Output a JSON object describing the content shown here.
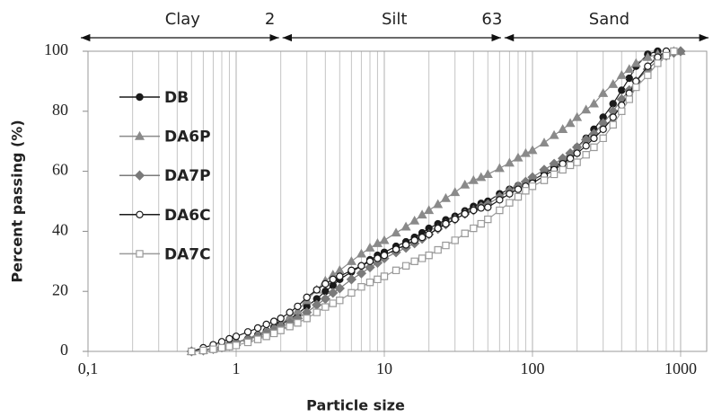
{
  "chart_data": {
    "type": "line",
    "xlabel": "Particle size",
    "ylabel": "Percent passing (%)",
    "log_x": true,
    "xlim": [
      0.1,
      1500
    ],
    "ylim": [
      0,
      100
    ],
    "xticks": [
      {
        "value": 0.1,
        "label": "0,1"
      },
      1,
      10,
      100,
      1000
    ],
    "yticks": [
      0,
      20,
      40,
      60,
      80,
      100
    ],
    "x_minor_grid": [
      0.2,
      0.3,
      0.4,
      0.5,
      0.6,
      0.7,
      0.8,
      0.9,
      2,
      3,
      4,
      5,
      6,
      7,
      8,
      9,
      20,
      30,
      40,
      50,
      60,
      70,
      80,
      90,
      200,
      300,
      400,
      500,
      600,
      700,
      800,
      900
    ],
    "zones": [
      "Clay",
      "Silt",
      "Sand"
    ],
    "boundaries": [
      2,
      63
    ],
    "legend": "upper left",
    "x": [
      0.5,
      0.6,
      0.7,
      0.8,
      0.9,
      1,
      1.2,
      1.4,
      1.6,
      1.8,
      2,
      2.3,
      2.6,
      3,
      3.5,
      4,
      4.5,
      5,
      6,
      7,
      8,
      9,
      10,
      12,
      14,
      16,
      18,
      20,
      23,
      26,
      30,
      35,
      40,
      45,
      50,
      60,
      70,
      80,
      90,
      100,
      120,
      140,
      160,
      180,
      200,
      230,
      260,
      300,
      350,
      400,
      450,
      500,
      600,
      700,
      800,
      900,
      1000
    ],
    "series": [
      {
        "name": "DB",
        "color": "#1a1a1a",
        "marker": "circle",
        "open": false,
        "values": [
          0,
          0.5,
          1,
          1.5,
          2.2,
          3,
          4.2,
          5.5,
          6.8,
          8,
          9,
          10.8,
          12.5,
          15,
          17.5,
          20,
          22,
          24,
          26.5,
          28.5,
          30.5,
          32,
          33,
          35,
          36.5,
          38,
          39.5,
          41,
          42.5,
          43.8,
          45,
          46.8,
          48.3,
          49.3,
          50,
          52.5,
          54,
          55.2,
          56.2,
          57,
          59.2,
          61.2,
          63,
          64.6,
          68,
          71,
          74,
          78,
          82.5,
          87,
          91,
          95,
          99,
          100,
          null,
          null,
          null
        ]
      },
      {
        "name": "DA6P",
        "color": "#8a8a8a",
        "marker": "triangle",
        "open": false,
        "values": [
          0,
          0.4,
          0.9,
          1.5,
          2.2,
          3,
          4.3,
          5.7,
          7,
          8,
          9,
          11.5,
          13.5,
          17,
          20.5,
          23.5,
          25.5,
          27,
          30,
          32.5,
          34.5,
          36,
          37,
          39.5,
          41.5,
          43.5,
          45.5,
          47,
          49,
          51,
          53,
          55.5,
          57,
          58,
          59,
          61,
          62.8,
          64.5,
          66,
          67,
          69.5,
          72,
          74,
          76,
          78,
          80.5,
          82.5,
          86,
          89,
          92,
          94,
          96,
          98,
          99,
          99.5,
          100,
          100
        ]
      },
      {
        "name": "DA7P",
        "color": "#7a7a7a",
        "marker": "diamond",
        "open": false,
        "values": [
          0,
          0.3,
          0.8,
          1.3,
          2,
          3,
          4,
          5,
          6,
          7,
          8,
          9.5,
          11,
          13,
          15.5,
          17.5,
          19.5,
          21,
          24,
          26,
          28,
          29.5,
          31,
          33,
          34.5,
          36,
          37.5,
          39,
          40.8,
          42.3,
          44,
          45.8,
          47,
          48.2,
          49,
          51.5,
          53.5,
          55,
          56.5,
          58,
          60.5,
          62.5,
          64.3,
          66,
          68,
          70.5,
          72.5,
          76,
          80,
          84,
          87,
          90,
          94,
          97,
          98.5,
          99.5,
          100
        ]
      },
      {
        "name": "DA6C",
        "color": "#1a1a1a",
        "marker": "circle",
        "open": true,
        "values": [
          0,
          1.2,
          2.2,
          3.2,
          4.2,
          5,
          6.5,
          7.8,
          9,
          10,
          11,
          13,
          15,
          18,
          20.5,
          22.5,
          24,
          25,
          27,
          28.5,
          30,
          31,
          32,
          34,
          35.5,
          37,
          38,
          39,
          41,
          42.5,
          44,
          45.8,
          47,
          47.8,
          48,
          50.5,
          52.5,
          54,
          55,
          56,
          58.5,
          60.5,
          62.5,
          64.3,
          66,
          68.5,
          71,
          74,
          78,
          82,
          86,
          90,
          95,
          98,
          100,
          null,
          null
        ]
      },
      {
        "name": "DA7C",
        "color": "#9a9a9a",
        "marker": "square",
        "open": true,
        "values": [
          0,
          0.3,
          0.7,
          1.2,
          1.6,
          2,
          3,
          4,
          5,
          6,
          7,
          8.3,
          9.5,
          11,
          13,
          14.8,
          16,
          17,
          19.5,
          21.5,
          23,
          24,
          25,
          27,
          28.5,
          30,
          31,
          32,
          33.8,
          35.3,
          37,
          39.3,
          41,
          42.5,
          44,
          47,
          49.5,
          51.5,
          53.5,
          55,
          57,
          59,
          60.5,
          62,
          63,
          65.5,
          68,
          71,
          75.5,
          80,
          84,
          88,
          92,
          96,
          98.5,
          100,
          null
        ]
      }
    ]
  }
}
